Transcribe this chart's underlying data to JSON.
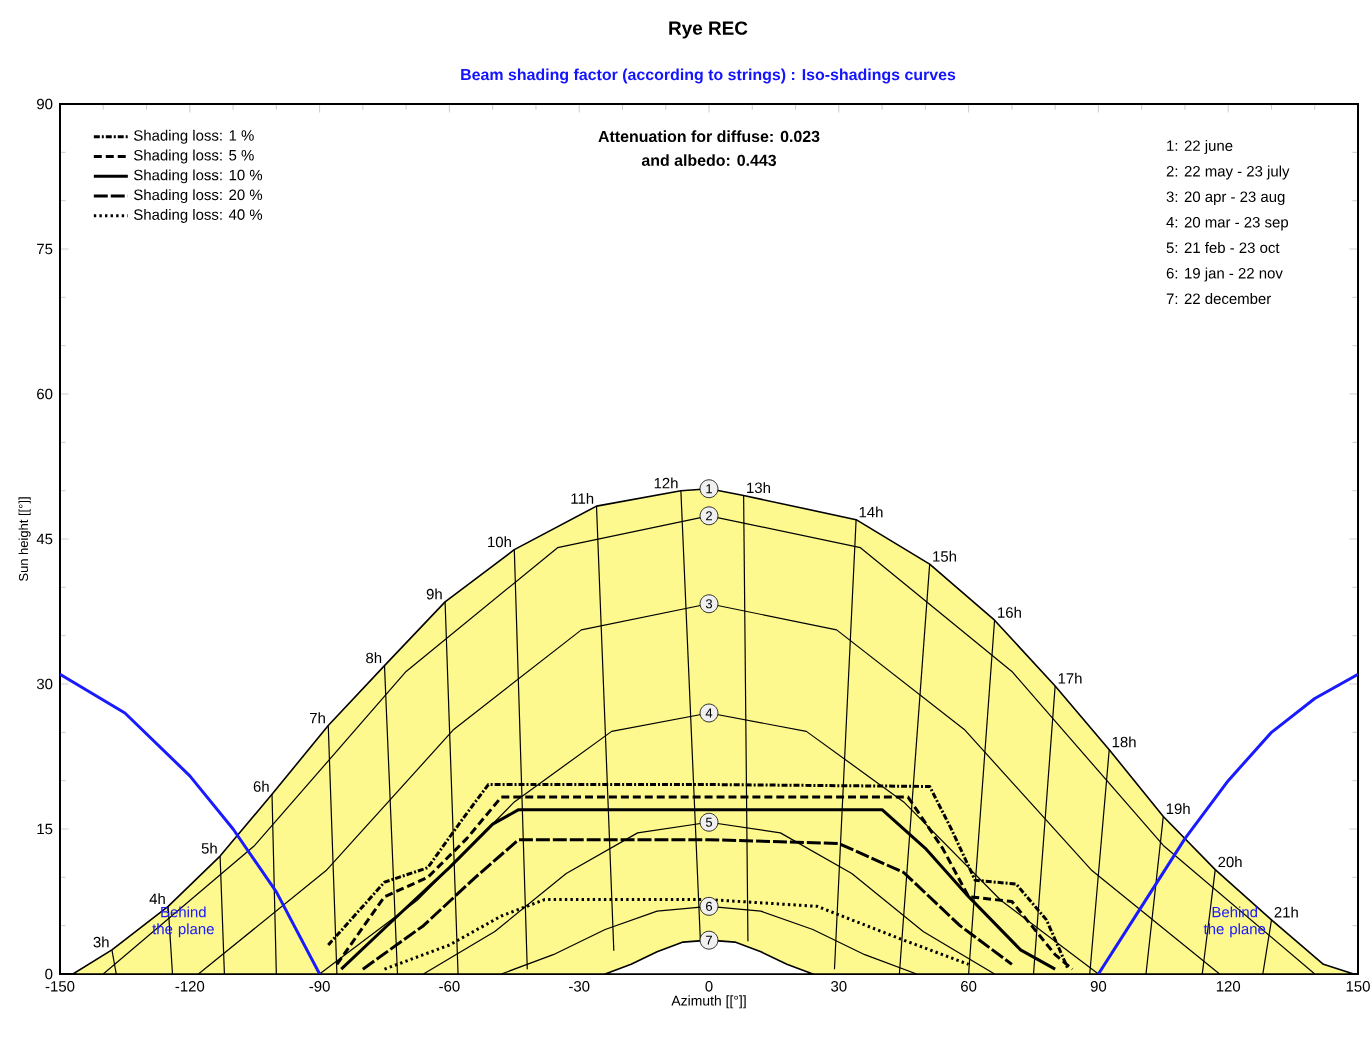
{
  "chart_data": {
    "type": "line",
    "title": "Rye REC",
    "subtitle": "Beam shading factor (according to strings) : Iso-shadings curves",
    "xlabel": "Azimuth [[°]]",
    "ylabel": "Sun height [[°]]",
    "xlim": [
      -150,
      150
    ],
    "ylim": [
      0,
      90
    ],
    "xticks": [
      -150,
      -120,
      -90,
      -60,
      -30,
      0,
      30,
      60,
      90,
      120,
      150
    ],
    "yticks": [
      0,
      15,
      30,
      45,
      60,
      75,
      90
    ],
    "legend": "top left",
    "grid": false,
    "annotations": [
      "Attenuation for diffuse: 0.023",
      "and albedo: 0.443",
      "1: 22 june",
      "2: 22 may - 23 july",
      "3: 20 apr - 23 aug",
      "4: 20 mar - 23 sep",
      "5: 21 feb - 23 oct",
      "6: 19 jan - 22 nov",
      "7: 22 december",
      "Behind the plane",
      "Behind the plane"
    ],
    "series": [
      {
        "name": "1",
        "type": "area",
        "color": "#fdf98f",
        "x": [
          -147,
          -138,
          -125,
          -113,
          -101,
          -88,
          -75,
          -61,
          -45,
          -26,
          -6.5,
          0,
          8,
          34,
          51,
          66,
          80,
          92.5,
          105,
          117,
          130,
          142,
          149
        ],
        "values": [
          0,
          2.5,
          7,
          12.2,
          18.6,
          25.7,
          31.9,
          38.5,
          43.9,
          48.4,
          50,
          50.2,
          49.5,
          47,
          42.4,
          36.6,
          29.8,
          23.2,
          16.3,
          10.8,
          5.6,
          1,
          0
        ]
      },
      {
        "name": "7",
        "type": "area",
        "color": "#ffffff",
        "x": [
          -24,
          -18,
          -12,
          -6,
          0,
          6,
          12,
          18,
          24
        ],
        "values": [
          0,
          1,
          2.3,
          3.3,
          3.5,
          3.3,
          2.3,
          1,
          0
        ]
      },
      {
        "name": "2",
        "color": "#000000",
        "x": [
          -140,
          -105,
          -70,
          -35,
          0,
          35,
          70,
          105,
          140
        ],
        "values": [
          0,
          13.3,
          31.3,
          44.1,
          47.4,
          44.1,
          31.3,
          13.3,
          0
        ]
      },
      {
        "name": "3",
        "color": "#000000",
        "x": [
          -118,
          -88.5,
          -59,
          -29.5,
          0,
          29.5,
          59,
          88.5,
          118
        ],
        "values": [
          0,
          10.7,
          25.3,
          35.6,
          38.3,
          35.6,
          25.3,
          10.7,
          0
        ]
      },
      {
        "name": "4",
        "color": "#000000",
        "x": [
          -90,
          -67.5,
          -45,
          -22.5,
          0,
          22.5,
          45,
          67.5,
          90
        ],
        "values": [
          0,
          7.6,
          17.8,
          25.1,
          27,
          25.1,
          17.8,
          7.6,
          0
        ]
      },
      {
        "name": "5",
        "color": "#000000",
        "x": [
          -66,
          -49.5,
          -33,
          -16.5,
          0,
          16.5,
          33,
          49.5,
          66
        ],
        "values": [
          0,
          4.4,
          10.4,
          14.6,
          15.7,
          14.6,
          10.4,
          4.4,
          0
        ]
      },
      {
        "name": "6",
        "color": "#000000",
        "x": [
          -48,
          -36,
          -24,
          -12,
          0,
          12,
          24,
          36,
          48
        ],
        "values": [
          0,
          2,
          4.6,
          6.5,
          7,
          6.5,
          4.6,
          2,
          0
        ]
      },
      {
        "name": "3h",
        "color": "#000000",
        "x": [
          -138,
          -137
        ],
        "values": [
          2.5,
          0
        ]
      },
      {
        "name": "4h",
        "color": "#000000",
        "x": [
          -125,
          -124
        ],
        "values": [
          7,
          0
        ]
      },
      {
        "name": "5h",
        "color": "#000000",
        "x": [
          -113,
          -112
        ],
        "values": [
          12.2,
          0
        ]
      },
      {
        "name": "6h",
        "color": "#000000",
        "x": [
          -101,
          -100
        ],
        "values": [
          18.6,
          0
        ]
      },
      {
        "name": "7h",
        "color": "#000000",
        "x": [
          -88,
          -86
        ],
        "values": [
          25.7,
          0
        ]
      },
      {
        "name": "8h",
        "color": "#000000",
        "x": [
          -75,
          -72
        ],
        "values": [
          31.9,
          0
        ]
      },
      {
        "name": "9h",
        "color": "#000000",
        "x": [
          -61,
          -58
        ],
        "values": [
          38.5,
          0
        ]
      },
      {
        "name": "10h",
        "color": "#000000",
        "x": [
          -45,
          -42
        ],
        "values": [
          43.9,
          0.5
        ]
      },
      {
        "name": "11h",
        "color": "#000000",
        "x": [
          -26,
          -22
        ],
        "values": [
          48.4,
          2.4
        ]
      },
      {
        "name": "12h",
        "color": "#000000",
        "x": [
          -6.5,
          -2
        ],
        "values": [
          50,
          3.5
        ]
      },
      {
        "name": "13h",
        "color": "#000000",
        "x": [
          8,
          9
        ],
        "values": [
          49.5,
          3.4
        ]
      },
      {
        "name": "14h",
        "color": "#000000",
        "x": [
          34,
          29
        ],
        "values": [
          47,
          0.5
        ]
      },
      {
        "name": "15h",
        "color": "#000000",
        "x": [
          51,
          44
        ],
        "values": [
          42.4,
          0
        ]
      },
      {
        "name": "16h",
        "color": "#000000",
        "x": [
          66,
          60
        ],
        "values": [
          36.6,
          0
        ]
      },
      {
        "name": "17h",
        "color": "#000000",
        "x": [
          80,
          75
        ],
        "values": [
          29.8,
          0
        ]
      },
      {
        "name": "18h",
        "color": "#000000",
        "x": [
          92.5,
          88
        ],
        "values": [
          23.2,
          0
        ]
      },
      {
        "name": "19h",
        "color": "#000000",
        "x": [
          105,
          101
        ],
        "values": [
          16.3,
          0
        ]
      },
      {
        "name": "20h",
        "color": "#000000",
        "x": [
          117,
          114
        ],
        "values": [
          10.8,
          0
        ]
      },
      {
        "name": "21h",
        "color": "#000000",
        "x": [
          130,
          128
        ],
        "values": [
          5.6,
          0
        ]
      },
      {
        "name": "Shading loss: 1 %",
        "color": "#000000",
        "line_style": "dashdot",
        "x": [
          -88,
          -75,
          -65,
          -57,
          -51,
          0,
          51,
          56,
          61.5,
          71,
          78,
          83
        ],
        "values": [
          3,
          9.5,
          11,
          16,
          19.6,
          19.6,
          19.4,
          15,
          9.7,
          9.3,
          5.6,
          0.5
        ]
      },
      {
        "name": "Shading loss: 5 %",
        "color": "#000000",
        "line_style": "dashed",
        "x": [
          -86,
          -75,
          -65,
          -56,
          -48,
          0,
          46,
          54,
          60,
          70,
          80,
          84
        ],
        "values": [
          1,
          8,
          10,
          14,
          18.3,
          18.3,
          18.3,
          13,
          8,
          7.5,
          2,
          0.5
        ]
      },
      {
        "name": "Shading loss: 10 %",
        "color": "#000000",
        "line_style": "solid",
        "x": [
          -85,
          -72,
          -60,
          -50,
          -44,
          0,
          40,
          50,
          60,
          72,
          80
        ],
        "values": [
          0.5,
          6,
          11,
          15.5,
          17,
          17,
          17,
          13,
          8,
          2.5,
          0.5
        ]
      },
      {
        "name": "Shading loss: 20 %",
        "color": "#000000",
        "line_style": "longdash",
        "x": [
          -80,
          -66,
          -54,
          -44,
          0,
          30,
          45,
          58,
          70
        ],
        "values": [
          0.5,
          5,
          10,
          13.9,
          13.9,
          13.5,
          10.5,
          5,
          1
        ]
      },
      {
        "name": "Shading loss: 40 %",
        "color": "#000000",
        "line_style": "dotted",
        "x": [
          -75,
          -60,
          -48,
          -38,
          0,
          25,
          45,
          60
        ],
        "values": [
          0.5,
          3,
          6,
          7.7,
          7.7,
          7,
          3.5,
          1
        ]
      },
      {
        "color": "#1a1aff",
        "line_style": "solid",
        "x": [
          -150,
          -135,
          -120,
          -110,
          -100,
          -90
        ],
        "values": [
          31,
          27,
          20.5,
          15,
          8.5,
          0
        ]
      },
      {
        "color": "#1a1aff",
        "line_style": "solid",
        "x": [
          90,
          100,
          110,
          120,
          130,
          140,
          150
        ],
        "values": [
          0,
          7,
          14,
          20,
          25,
          28.5,
          31
        ]
      }
    ]
  }
}
